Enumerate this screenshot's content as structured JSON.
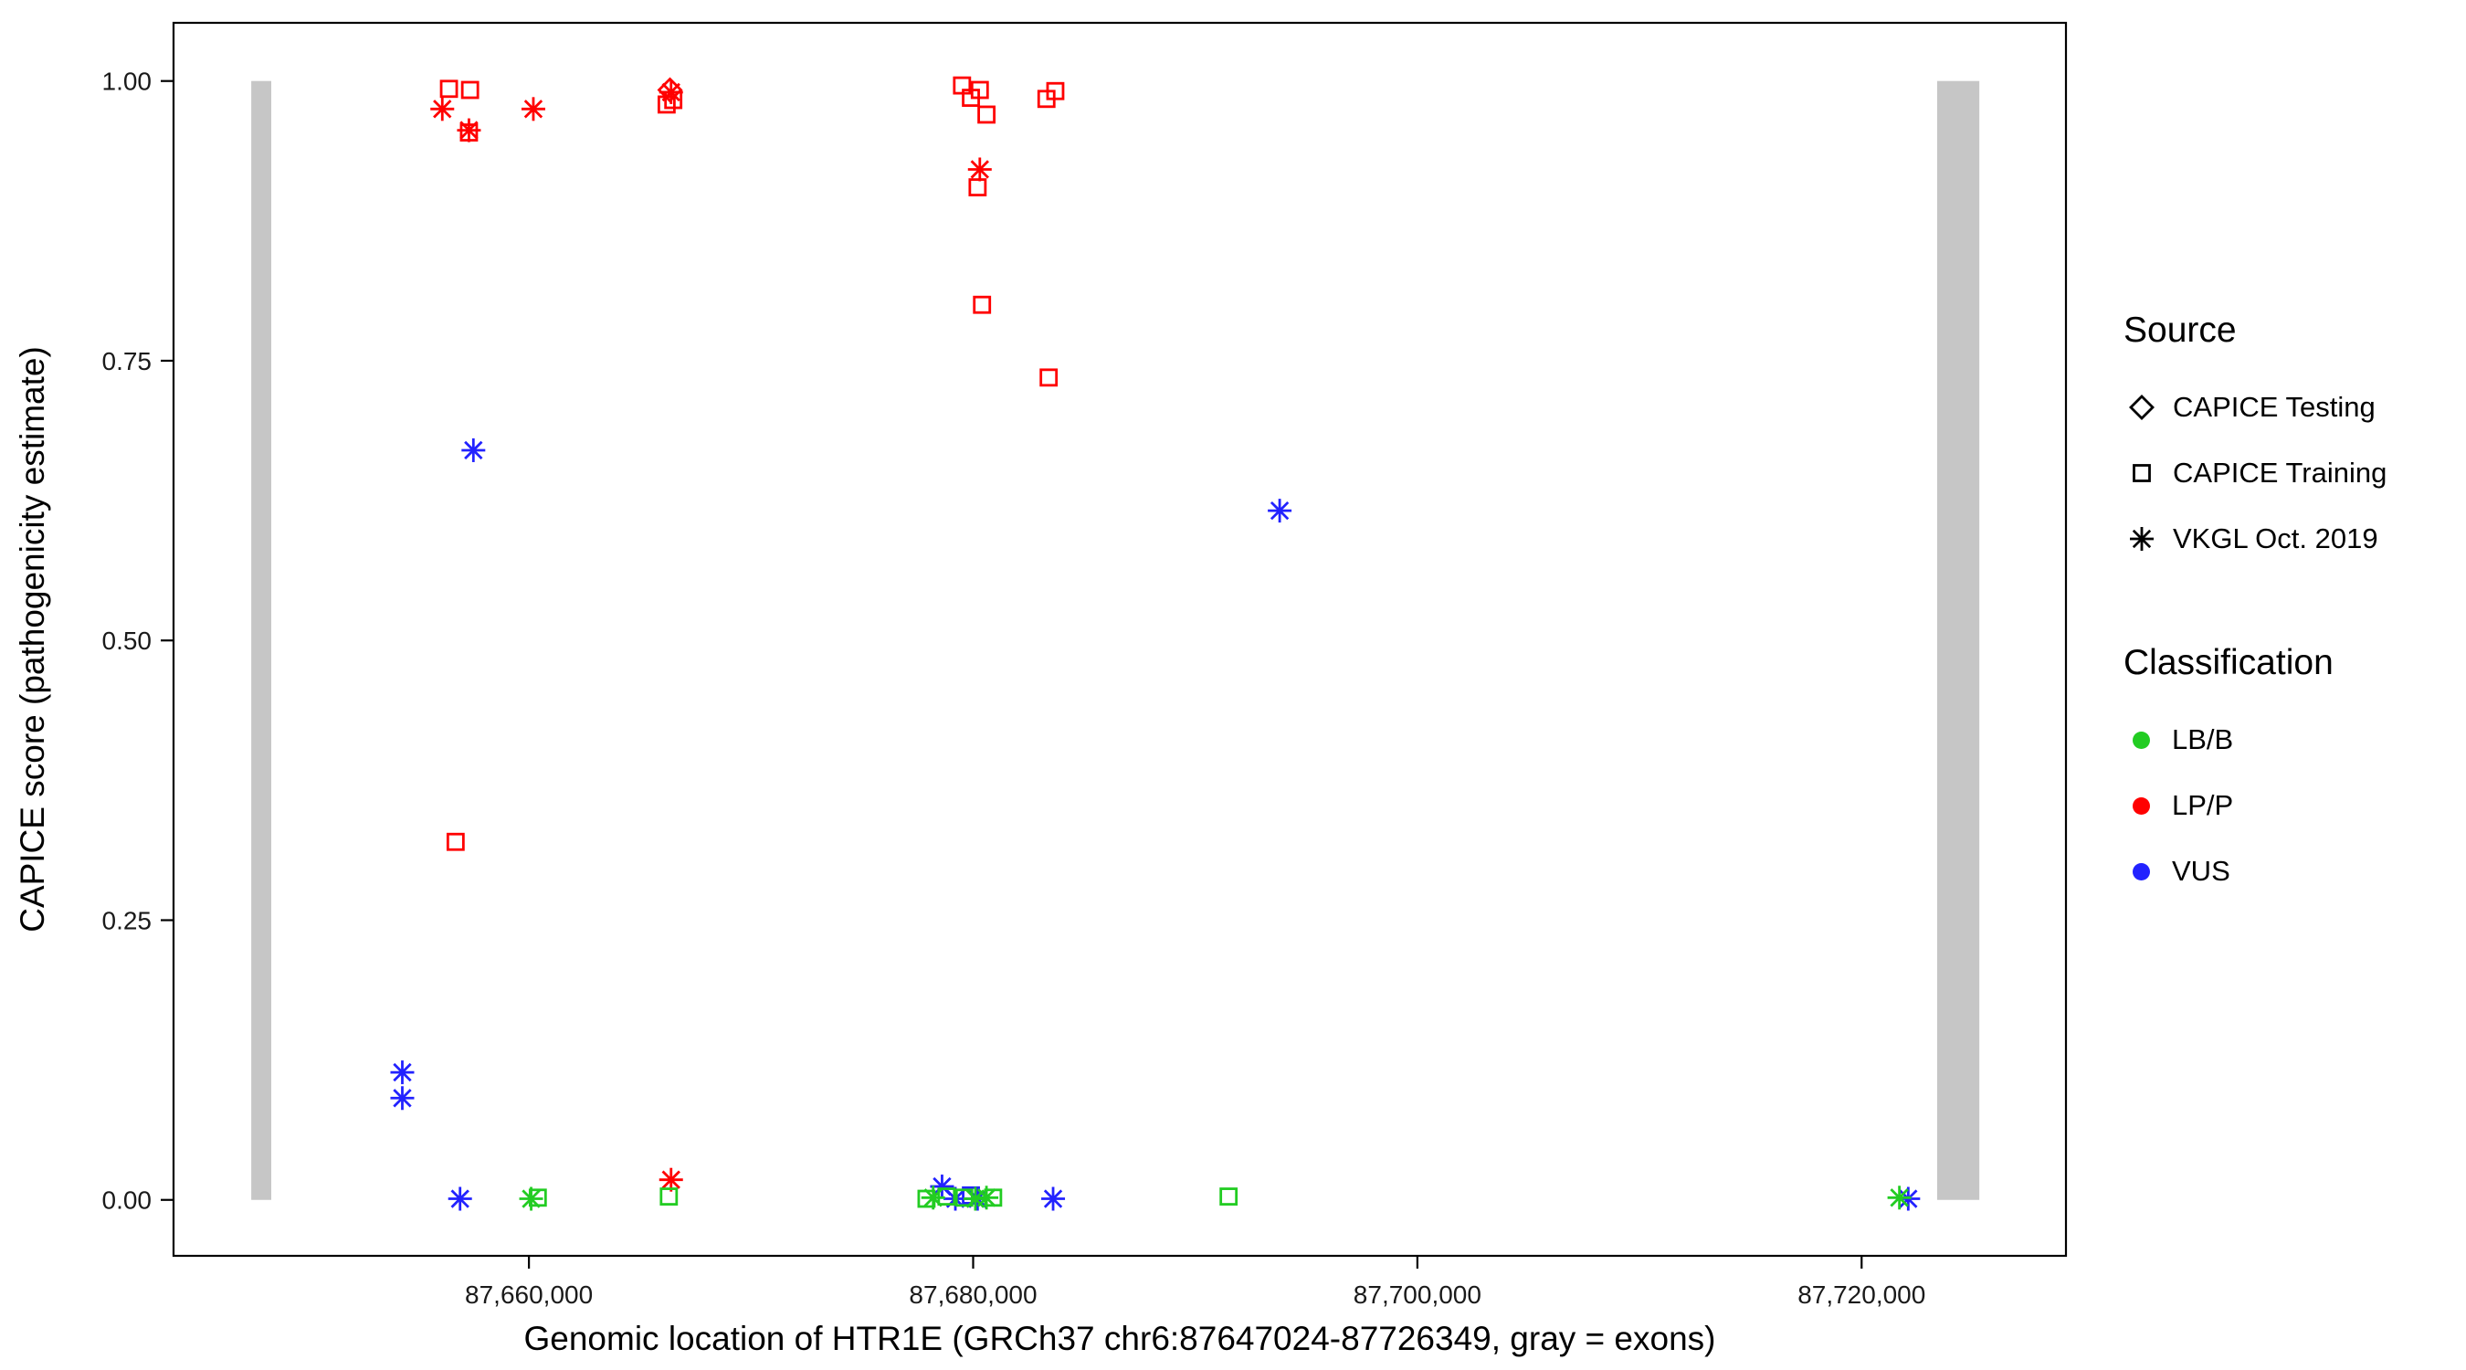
{
  "chart_data": {
    "type": "scatter",
    "title": "",
    "xlabel": "Genomic location of HTR1E (GRCh37 chr6:87647024-87726349, gray = exons)",
    "ylabel": "CAPICE score (pathogenicity estimate)",
    "xlim": [
      87644000,
      87729200
    ],
    "ylim": [
      -0.05,
      1.052
    ],
    "grid": "off",
    "x_ticks": [
      {
        "value": 87660000,
        "label": "87,660,000"
      },
      {
        "value": 87680000,
        "label": "87,680,000"
      },
      {
        "value": 87700000,
        "label": "87,700,000"
      },
      {
        "value": 87720000,
        "label": "87,720,000"
      }
    ],
    "y_ticks": [
      {
        "value": 0.0,
        "label": "0.00"
      },
      {
        "value": 0.25,
        "label": "0.25"
      },
      {
        "value": 0.5,
        "label": "0.50"
      },
      {
        "value": 0.75,
        "label": "0.75"
      },
      {
        "value": 1.0,
        "label": "1.00"
      }
    ],
    "exon_color": "#c6c6c6",
    "exons": [
      {
        "start": 87647500,
        "end": 87648400
      },
      {
        "start": 87723400,
        "end": 87725300
      }
    ],
    "classification_colors": {
      "LB/B": "#22cc22",
      "LP/P": "#ff0000",
      "VUS": "#2222ff"
    },
    "shape_meaning": {
      "diamond": "CAPICE Testing",
      "square": "CAPICE Training",
      "asterisk": "VKGL Oct. 2019"
    },
    "points": [
      {
        "x": 87656400,
        "y": 0.993,
        "cls": "LP/P",
        "shape": "square"
      },
      {
        "x": 87657350,
        "y": 0.992,
        "cls": "LP/P",
        "shape": "square"
      },
      {
        "x": 87657300,
        "y": 0.954,
        "cls": "LP/P",
        "shape": "square"
      },
      {
        "x": 87656700,
        "y": 0.32,
        "cls": "LP/P",
        "shape": "square"
      },
      {
        "x": 87666200,
        "y": 0.979,
        "cls": "LP/P",
        "shape": "square"
      },
      {
        "x": 87666500,
        "y": 0.983,
        "cls": "LP/P",
        "shape": "square"
      },
      {
        "x": 87679500,
        "y": 0.996,
        "cls": "LP/P",
        "shape": "square"
      },
      {
        "x": 87679900,
        "y": 0.985,
        "cls": "LP/P",
        "shape": "square"
      },
      {
        "x": 87680300,
        "y": 0.992,
        "cls": "LP/P",
        "shape": "square"
      },
      {
        "x": 87680600,
        "y": 0.97,
        "cls": "LP/P",
        "shape": "square"
      },
      {
        "x": 87680200,
        "y": 0.905,
        "cls": "LP/P",
        "shape": "square"
      },
      {
        "x": 87680400,
        "y": 0.8,
        "cls": "LP/P",
        "shape": "square"
      },
      {
        "x": 87683300,
        "y": 0.984,
        "cls": "LP/P",
        "shape": "square"
      },
      {
        "x": 87683700,
        "y": 0.991,
        "cls": "LP/P",
        "shape": "square"
      },
      {
        "x": 87683400,
        "y": 0.735,
        "cls": "LP/P",
        "shape": "square"
      },
      {
        "x": 87656100,
        "y": 0.975,
        "cls": "LP/P",
        "shape": "asterisk"
      },
      {
        "x": 87657300,
        "y": 0.956,
        "cls": "LP/P",
        "shape": "asterisk"
      },
      {
        "x": 87660200,
        "y": 0.975,
        "cls": "LP/P",
        "shape": "asterisk"
      },
      {
        "x": 87666400,
        "y": 0.99,
        "cls": "LP/P",
        "shape": "asterisk"
      },
      {
        "x": 87680300,
        "y": 0.921,
        "cls": "LP/P",
        "shape": "asterisk"
      },
      {
        "x": 87666400,
        "y": 0.018,
        "cls": "LP/P",
        "shape": "asterisk"
      },
      {
        "x": 87666350,
        "y": 0.992,
        "cls": "LP/P",
        "shape": "diamond"
      },
      {
        "x": 87657500,
        "y": 0.67,
        "cls": "VUS",
        "shape": "asterisk"
      },
      {
        "x": 87693800,
        "y": 0.616,
        "cls": "VUS",
        "shape": "asterisk"
      },
      {
        "x": 87654300,
        "y": 0.114,
        "cls": "VUS",
        "shape": "asterisk"
      },
      {
        "x": 87654300,
        "y": 0.091,
        "cls": "VUS",
        "shape": "asterisk"
      },
      {
        "x": 87656900,
        "y": 0.001,
        "cls": "VUS",
        "shape": "asterisk"
      },
      {
        "x": 87678600,
        "y": 0.012,
        "cls": "VUS",
        "shape": "asterisk"
      },
      {
        "x": 87679200,
        "y": 0.001,
        "cls": "VUS",
        "shape": "asterisk"
      },
      {
        "x": 87680200,
        "y": 0.001,
        "cls": "VUS",
        "shape": "asterisk"
      },
      {
        "x": 87683600,
        "y": 0.001,
        "cls": "VUS",
        "shape": "asterisk"
      },
      {
        "x": 87722100,
        "y": 0.001,
        "cls": "VUS",
        "shape": "asterisk"
      },
      {
        "x": 87679900,
        "y": 0.004,
        "cls": "VUS",
        "shape": "square"
      },
      {
        "x": 87660100,
        "y": 0.001,
        "cls": "LB/B",
        "shape": "asterisk"
      },
      {
        "x": 87660400,
        "y": 0.002,
        "cls": "LB/B",
        "shape": "square"
      },
      {
        "x": 87666300,
        "y": 0.003,
        "cls": "LB/B",
        "shape": "square"
      },
      {
        "x": 87677900,
        "y": 0.001,
        "cls": "LB/B",
        "shape": "square"
      },
      {
        "x": 87678200,
        "y": 0.002,
        "cls": "LB/B",
        "shape": "asterisk"
      },
      {
        "x": 87678800,
        "y": 0.003,
        "cls": "LB/B",
        "shape": "square"
      },
      {
        "x": 87679600,
        "y": 0.002,
        "cls": "LB/B",
        "shape": "square"
      },
      {
        "x": 87680100,
        "y": 0.001,
        "cls": "LB/B",
        "shape": "asterisk"
      },
      {
        "x": 87680600,
        "y": 0.002,
        "cls": "LB/B",
        "shape": "asterisk"
      },
      {
        "x": 87680900,
        "y": 0.002,
        "cls": "LB/B",
        "shape": "square"
      },
      {
        "x": 87691500,
        "y": 0.003,
        "cls": "LB/B",
        "shape": "square"
      },
      {
        "x": 87721700,
        "y": 0.002,
        "cls": "LB/B",
        "shape": "asterisk"
      }
    ]
  },
  "legend": {
    "source": {
      "title": "Source",
      "items": [
        {
          "label": "CAPICE Testing",
          "shape": "diamond"
        },
        {
          "label": "CAPICE Training",
          "shape": "square"
        },
        {
          "label": "VKGL Oct. 2019",
          "shape": "asterisk"
        }
      ]
    },
    "classification": {
      "title": "Classification",
      "items": [
        {
          "label": "LB/B",
          "color": "#22cc22"
        },
        {
          "label": "LP/P",
          "color": "#ff0000"
        },
        {
          "label": "VUS",
          "color": "#2222ff"
        }
      ]
    }
  }
}
